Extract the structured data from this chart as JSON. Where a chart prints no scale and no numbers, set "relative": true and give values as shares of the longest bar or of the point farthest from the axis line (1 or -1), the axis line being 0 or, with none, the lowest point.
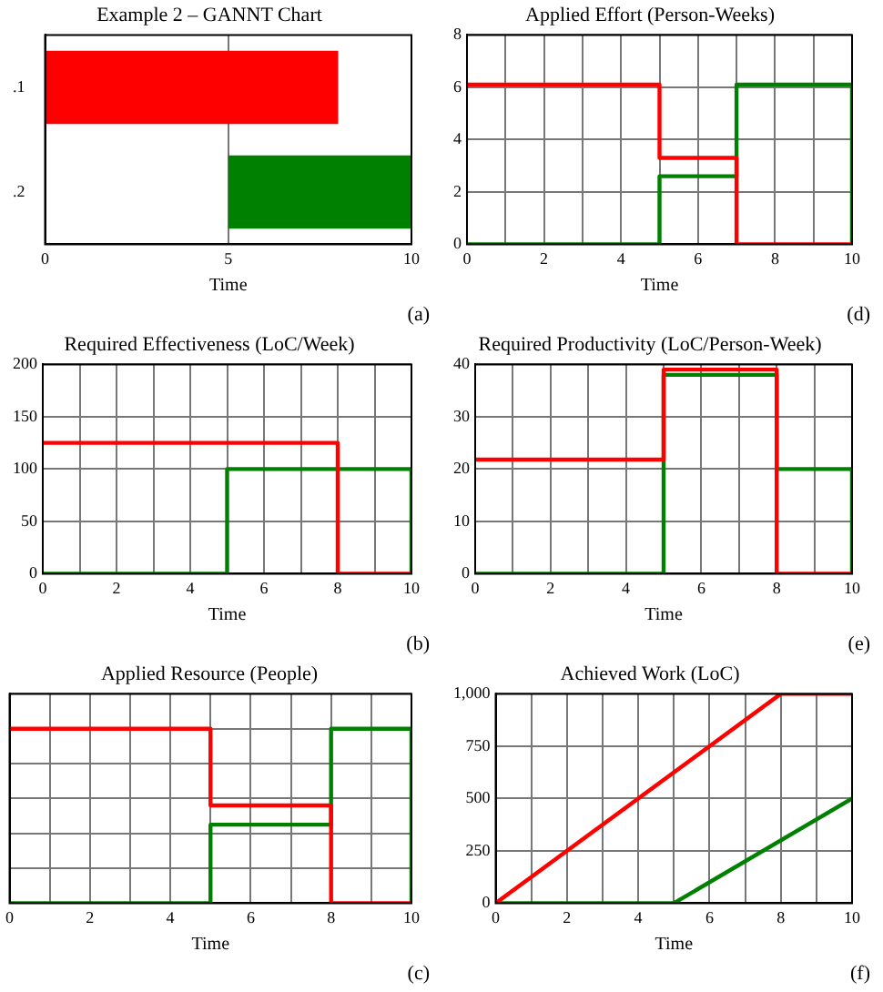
{
  "chart_data": [
    {
      "type": "bar",
      "orientation": "horizontal",
      "title": "Example 2 – GANNT Chart",
      "xlabel": "Time",
      "categories": [
        ".1",
        ".2"
      ],
      "base": [
        0,
        5
      ],
      "values": [
        8,
        5
      ],
      "colors": [
        "#ff0000",
        "#008000"
      ],
      "xlim": [
        0,
        10
      ],
      "xticks": [
        0,
        5,
        10
      ],
      "grid": "x",
      "annotations": [
        "(a)"
      ]
    },
    {
      "type": "step",
      "title": "Applied Effort (Person-Weeks)",
      "xlabel": "Time",
      "series": [
        {
          "color": "#ff0000",
          "x": [
            0,
            5,
            7,
            10
          ],
          "values": [
            6.1,
            3.3,
            0,
            0
          ]
        },
        {
          "color": "#008000",
          "x": [
            0,
            5,
            7,
            10,
            10
          ],
          "values": [
            0,
            2.6,
            6.1,
            6.1,
            0
          ]
        }
      ],
      "xlim": [
        0,
        10
      ],
      "xticks": [
        0,
        {
          "value": 1,
          "label": null
        },
        2,
        {
          "value": 3,
          "label": null
        },
        4,
        {
          "value": 5,
          "label": null
        },
        6,
        {
          "value": 7,
          "label": null
        },
        8,
        {
          "value": 9,
          "label": null
        },
        10
      ],
      "ylim": [
        0,
        8
      ],
      "yticks": [
        0,
        2,
        4,
        6,
        8
      ],
      "grid": true,
      "annotations": [
        "(d)"
      ]
    },
    {
      "type": "step",
      "title": "Required Effectiveness (LoC/Week)",
      "xlabel": "Time",
      "series": [
        {
          "color": "#ff0000",
          "x": [
            0,
            8,
            10
          ],
          "values": [
            125,
            0,
            0
          ]
        },
        {
          "color": "#008000",
          "x": [
            0,
            5,
            10,
            10
          ],
          "values": [
            0,
            100,
            100,
            0
          ]
        }
      ],
      "xlim": [
        0,
        10
      ],
      "xticks": [
        0,
        {
          "value": 1,
          "label": null
        },
        2,
        {
          "value": 3,
          "label": null
        },
        4,
        {
          "value": 5,
          "label": null
        },
        6,
        {
          "value": 7,
          "label": null
        },
        8,
        {
          "value": 9,
          "label": null
        },
        10
      ],
      "ylim": [
        0,
        200
      ],
      "yticks": [
        0,
        50,
        100,
        150,
        200
      ],
      "grid": true,
      "annotations": [
        "(b)"
      ]
    },
    {
      "type": "step",
      "title": "Required Productivity (LoC/Person-Week)",
      "xlabel": "Time",
      "series": [
        {
          "color": "#ff0000",
          "x": [
            0,
            5,
            8,
            10
          ],
          "values": [
            21.8,
            39,
            0,
            0
          ]
        },
        {
          "color": "#008000",
          "x": [
            0,
            5,
            8,
            10,
            10
          ],
          "values": [
            0,
            38,
            20,
            20,
            0
          ]
        }
      ],
      "xlim": [
        0,
        10
      ],
      "xticks": [
        0,
        {
          "value": 1,
          "label": null
        },
        2,
        {
          "value": 3,
          "label": null
        },
        4,
        {
          "value": 5,
          "label": null
        },
        6,
        {
          "value": 7,
          "label": null
        },
        8,
        {
          "value": 9,
          "label": null
        },
        10
      ],
      "ylim": [
        0,
        40
      ],
      "yticks": [
        0,
        10,
        20,
        30,
        40
      ],
      "grid": true,
      "annotations": [
        "(e)"
      ]
    },
    {
      "type": "step",
      "relative": true,
      "tick_labels": "x",
      "title": "Applied Resource (People)",
      "xlabel": "Time",
      "series": [
        {
          "color": "#ff0000",
          "x": [
            0,
            5,
            8,
            10
          ],
          "values": [
            1,
            0.56,
            0,
            0
          ]
        },
        {
          "color": "#008000",
          "x": [
            0,
            5,
            8,
            10,
            10
          ],
          "values": [
            0,
            0.45,
            1,
            1,
            0
          ]
        }
      ],
      "xlim": [
        0,
        10
      ],
      "xticks": [
        0,
        {
          "value": 1,
          "label": null
        },
        2,
        {
          "value": 3,
          "label": null
        },
        4,
        {
          "value": 5,
          "label": null
        },
        6,
        {
          "value": 7,
          "label": null
        },
        8,
        {
          "value": 9,
          "label": null
        },
        10
      ],
      "grid": true,
      "annotations": [
        "(c)"
      ]
    },
    {
      "type": "line",
      "title": "Achieved Work (LoC)",
      "xlabel": "Time",
      "series": [
        {
          "color": "#ff0000",
          "x": [
            0,
            8,
            10
          ],
          "values": [
            0,
            1000,
            1000
          ]
        },
        {
          "color": "#008000",
          "x": [
            0,
            5,
            10
          ],
          "values": [
            0,
            0,
            500
          ]
        }
      ],
      "xlim": [
        0,
        10
      ],
      "xticks": [
        0,
        {
          "value": 1,
          "label": null
        },
        2,
        {
          "value": 3,
          "label": null
        },
        4,
        {
          "value": 5,
          "label": null
        },
        6,
        {
          "value": 7,
          "label": null
        },
        8,
        {
          "value": 9,
          "label": null
        },
        10
      ],
      "ylim": [
        0,
        1000
      ],
      "yticks": [
        0,
        250,
        500,
        750,
        {
          "value": 1000,
          "label": "1,000"
        }
      ],
      "grid": true,
      "annotations": [
        "(f)"
      ]
    }
  ]
}
